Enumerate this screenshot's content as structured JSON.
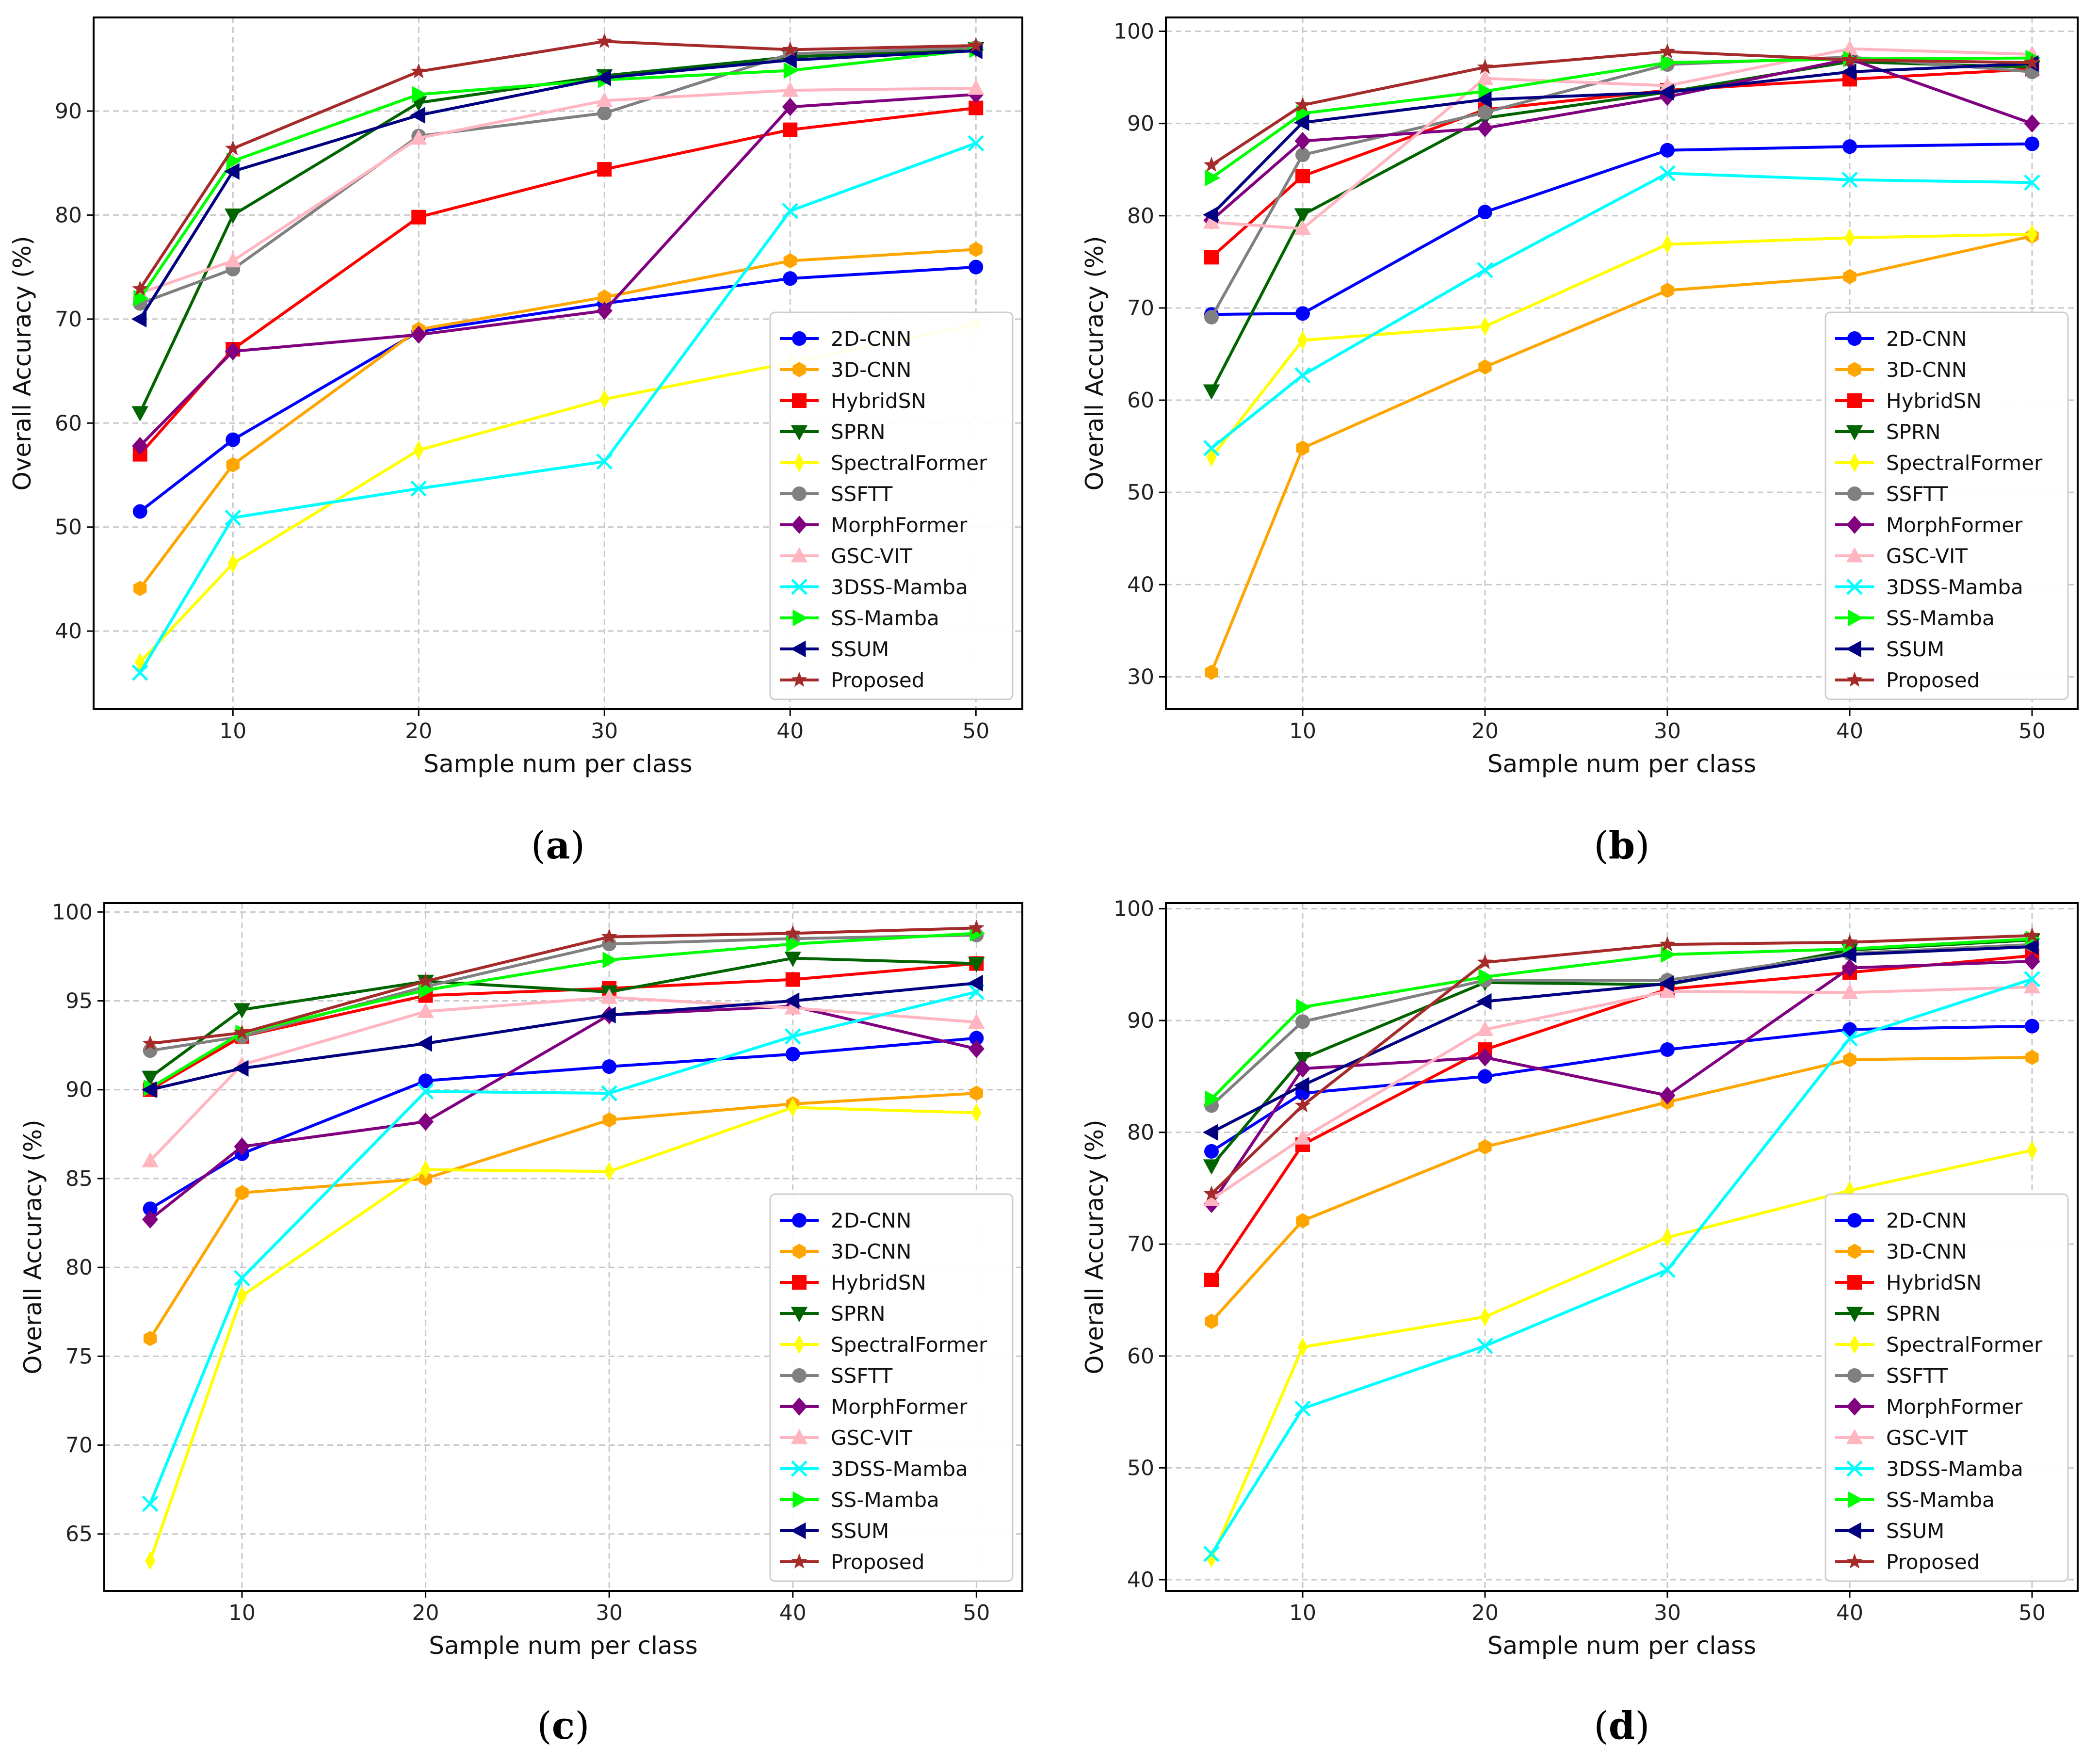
{
  "colors": {
    "2D-CNN": "#0000ff",
    "3D-CNN": "#ffa500",
    "HybridSN": "#ff0000",
    "SPRN": "#006400",
    "SpectralFormer": "#ffff00",
    "SSFTT": "#808080",
    "MorphFormer": "#800080",
    "GSC-VIT": "#ffb6c1",
    "3DSS-Mamba": "#00ffff",
    "SS-Mamba": "#00ff00",
    "SSUM": "#000080",
    "Proposed": "#a52a2a"
  },
  "markers": {
    "2D-CNN": "circle",
    "3D-CNN": "hexagon",
    "HybridSN": "square",
    "SPRN": "triangle-down",
    "SpectralFormer": "thin-diamond",
    "SSFTT": "circle",
    "MorphFormer": "diamond",
    "GSC-VIT": "triangle-up",
    "3DSS-Mamba": "x",
    "SS-Mamba": "triangle-right",
    "SSUM": "triangle-left",
    "Proposed": "star"
  },
  "chart_data": [
    {
      "type": "line",
      "caption_open": "(",
      "caption_letter": "a",
      "caption_close": ")",
      "xlabel": "Sample num per class",
      "ylabel": "Overall Accuracy (%)",
      "x": [
        5,
        10,
        20,
        30,
        40,
        50
      ],
      "xlim": [
        2.5,
        52.5
      ],
      "ylim": [
        32.5,
        99
      ],
      "xticks": [
        10,
        20,
        30,
        40,
        50
      ],
      "yticks": [
        40,
        50,
        60,
        70,
        80,
        90
      ],
      "grid": true,
      "legend": "lower-right",
      "series": [
        {
          "name": "2D-CNN",
          "values": [
            51.5,
            58.4,
            68.8,
            71.5,
            73.9,
            75.0
          ]
        },
        {
          "name": "3D-CNN",
          "values": [
            44.1,
            56.0,
            69.0,
            72.1,
            75.6,
            76.7
          ]
        },
        {
          "name": "HybridSN",
          "values": [
            57.0,
            67.1,
            79.8,
            84.4,
            88.2,
            90.3
          ]
        },
        {
          "name": "SPRN",
          "values": [
            61.0,
            80.0,
            90.8,
            93.4,
            95.2,
            96.0
          ]
        },
        {
          "name": "SpectralFormer",
          "values": [
            37.0,
            46.5,
            57.4,
            62.3,
            65.8,
            69.5
          ]
        },
        {
          "name": "SSFTT",
          "values": [
            71.5,
            74.8,
            87.6,
            89.8,
            95.5,
            96.1
          ]
        },
        {
          "name": "MorphFormer",
          "values": [
            57.8,
            66.9,
            68.5,
            70.8,
            90.4,
            91.6
          ]
        },
        {
          "name": "GSC-VIT",
          "values": [
            72.5,
            75.6,
            87.4,
            91.0,
            92.0,
            92.2
          ]
        },
        {
          "name": "3DSS-Mamba",
          "values": [
            36.0,
            50.9,
            53.7,
            56.3,
            80.4,
            86.9
          ]
        },
        {
          "name": "SS-Mamba",
          "values": [
            72.0,
            85.2,
            91.6,
            93.0,
            93.9,
            95.9
          ]
        },
        {
          "name": "SSUM",
          "values": [
            70.0,
            84.2,
            89.6,
            93.2,
            94.9,
            95.8
          ]
        },
        {
          "name": "Proposed",
          "values": [
            72.9,
            86.4,
            93.8,
            96.7,
            95.9,
            96.3
          ]
        }
      ]
    },
    {
      "type": "line",
      "caption_open": "(",
      "caption_letter": "b",
      "caption_close": ")",
      "xlabel": "Sample num per class",
      "ylabel": "Overall Accuracy (%)",
      "x": [
        5,
        10,
        20,
        30,
        40,
        50
      ],
      "xlim": [
        2.5,
        52.5
      ],
      "ylim": [
        26.5,
        101.5
      ],
      "xticks": [
        10,
        20,
        30,
        40,
        50
      ],
      "yticks": [
        30,
        40,
        50,
        60,
        70,
        80,
        90,
        100
      ],
      "grid": true,
      "legend": "lower-right",
      "series": [
        {
          "name": "2D-CNN",
          "values": [
            69.3,
            69.4,
            80.4,
            87.1,
            87.5,
            87.8
          ]
        },
        {
          "name": "3D-CNN",
          "values": [
            30.5,
            54.8,
            63.6,
            71.9,
            73.4,
            77.8
          ]
        },
        {
          "name": "HybridSN",
          "values": [
            75.5,
            84.3,
            91.5,
            93.6,
            94.8,
            95.9
          ]
        },
        {
          "name": "SPRN",
          "values": [
            61.0,
            80.1,
            90.6,
            93.4,
            96.7,
            96.1
          ]
        },
        {
          "name": "SpectralFormer",
          "values": [
            53.8,
            66.5,
            68.0,
            76.9,
            77.6,
            78.0
          ]
        },
        {
          "name": "SSFTT",
          "values": [
            69.0,
            86.6,
            91.2,
            96.4,
            97.2,
            95.6
          ]
        },
        {
          "name": "MorphFormer",
          "values": [
            79.5,
            88.1,
            89.5,
            92.9,
            97.0,
            90.0
          ]
        },
        {
          "name": "GSC-VIT",
          "values": [
            79.3,
            78.6,
            94.9,
            94.1,
            98.1,
            97.5
          ]
        },
        {
          "name": "3DSS-Mamba",
          "values": [
            54.8,
            62.7,
            74.1,
            84.6,
            83.9,
            83.6
          ]
        },
        {
          "name": "SS-Mamba",
          "values": [
            84.1,
            91.1,
            93.5,
            96.6,
            97.0,
            97.1
          ]
        },
        {
          "name": "SSUM",
          "values": [
            80.1,
            90.1,
            92.6,
            93.4,
            95.6,
            96.5
          ]
        },
        {
          "name": "Proposed",
          "values": [
            85.5,
            92.0,
            96.1,
            97.8,
            96.9,
            96.6
          ]
        }
      ]
    },
    {
      "type": "line",
      "caption_open": "(",
      "caption_letter": "c",
      "caption_close": ")",
      "xlabel": "Sample num per class",
      "ylabel": "Overall Accuracy (%)",
      "x": [
        5,
        10,
        20,
        30,
        40,
        50
      ],
      "xlim": [
        2.5,
        52.5
      ],
      "ylim": [
        61.8,
        100.5
      ],
      "xticks": [
        10,
        20,
        30,
        40,
        50
      ],
      "yticks": [
        65,
        70,
        75,
        80,
        85,
        90,
        95,
        100
      ],
      "grid": true,
      "legend": "lower-right",
      "series": [
        {
          "name": "2D-CNN",
          "values": [
            83.3,
            86.4,
            90.5,
            91.3,
            92.0,
            92.9
          ]
        },
        {
          "name": "3D-CNN",
          "values": [
            76.0,
            84.2,
            85.0,
            88.3,
            89.2,
            89.8
          ]
        },
        {
          "name": "HybridSN",
          "values": [
            90.0,
            93.0,
            95.3,
            95.7,
            96.2,
            97.1
          ]
        },
        {
          "name": "SPRN",
          "values": [
            90.7,
            94.5,
            96.1,
            95.5,
            97.4,
            97.1
          ]
        },
        {
          "name": "SpectralFormer",
          "values": [
            63.5,
            78.4,
            85.5,
            85.4,
            89.0,
            88.7
          ]
        },
        {
          "name": "SSFTT",
          "values": [
            92.2,
            93.0,
            95.8,
            98.2,
            98.5,
            98.7
          ]
        },
        {
          "name": "MorphFormer",
          "values": [
            82.7,
            86.8,
            88.2,
            94.2,
            94.7,
            92.3
          ]
        },
        {
          "name": "GSC-VIT",
          "values": [
            86.0,
            91.4,
            94.4,
            95.2,
            94.6,
            93.8
          ]
        },
        {
          "name": "3DSS-Mamba",
          "values": [
            66.7,
            79.4,
            89.9,
            89.8,
            93.0,
            95.5
          ]
        },
        {
          "name": "SS-Mamba",
          "values": [
            90.1,
            93.2,
            95.6,
            97.3,
            98.2,
            98.8
          ]
        },
        {
          "name": "SSUM",
          "values": [
            90.0,
            91.2,
            92.6,
            94.2,
            95.0,
            96.0
          ]
        },
        {
          "name": "Proposed",
          "values": [
            92.6,
            93.2,
            96.1,
            98.6,
            98.8,
            99.1
          ]
        }
      ]
    },
    {
      "type": "line",
      "caption_open": "(",
      "caption_letter": "d",
      "caption_close": ")",
      "xlabel": "Sample num per class",
      "ylabel": "Overall Accuracy (%)",
      "x": [
        5,
        10,
        20,
        30,
        40,
        50
      ],
      "xlim": [
        2.5,
        52.5
      ],
      "ylim": [
        39,
        100.5
      ],
      "xticks": [
        10,
        20,
        30,
        40,
        50
      ],
      "yticks": [
        40,
        50,
        60,
        70,
        80,
        90,
        100
      ],
      "grid": true,
      "legend": "lower-right",
      "series": [
        {
          "name": "2D-CNN",
          "values": [
            78.3,
            83.5,
            85.0,
            87.4,
            89.2,
            89.5
          ]
        },
        {
          "name": "3D-CNN",
          "values": [
            63.1,
            72.1,
            78.7,
            82.7,
            86.5,
            86.7
          ]
        },
        {
          "name": "HybridSN",
          "values": [
            66.8,
            78.9,
            87.4,
            92.8,
            94.3,
            95.8
          ]
        },
        {
          "name": "SPRN",
          "values": [
            77.0,
            86.6,
            93.4,
            93.2,
            96.3,
            97.2
          ]
        },
        {
          "name": "SpectralFormer",
          "values": [
            41.9,
            60.8,
            63.5,
            70.6,
            74.8,
            78.4
          ]
        },
        {
          "name": "SSFTT",
          "values": [
            82.4,
            89.9,
            93.6,
            93.6,
            96.0,
            96.8
          ]
        },
        {
          "name": "MorphFormer",
          "values": [
            73.6,
            85.7,
            86.7,
            83.3,
            94.7,
            95.3
          ]
        },
        {
          "name": "GSC-VIT",
          "values": [
            74.0,
            79.5,
            89.2,
            92.6,
            92.5,
            93.0
          ]
        },
        {
          "name": "3DSS-Mamba",
          "values": [
            42.3,
            55.3,
            60.9,
            67.7,
            88.4,
            93.7
          ]
        },
        {
          "name": "SS-Mamba",
          "values": [
            83.0,
            91.2,
            93.9,
            95.9,
            96.4,
            97.3
          ]
        },
        {
          "name": "SSUM",
          "values": [
            80.0,
            84.2,
            91.7,
            93.3,
            95.9,
            96.6
          ]
        },
        {
          "name": "Proposed",
          "values": [
            74.5,
            82.4,
            95.2,
            96.8,
            97.0,
            97.6
          ]
        }
      ]
    }
  ]
}
